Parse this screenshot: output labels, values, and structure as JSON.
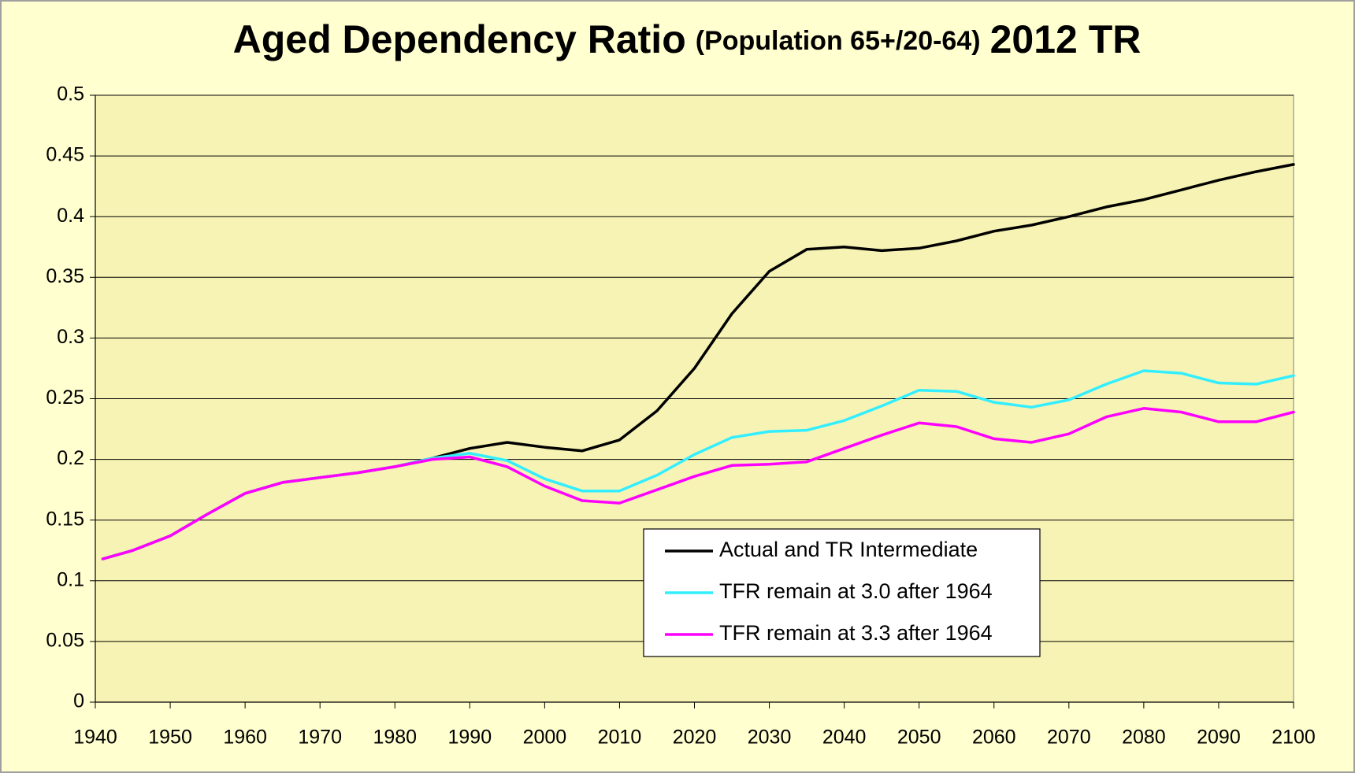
{
  "chart_data": {
    "type": "line",
    "title_parts": [
      "Aged Dependency Ratio",
      "(Population 65+/20-64)",
      "2012 TR"
    ],
    "x": [
      1941,
      1945,
      1950,
      1955,
      1960,
      1965,
      1970,
      1975,
      1980,
      1985,
      1990,
      1995,
      2000,
      2005,
      2010,
      2015,
      2020,
      2025,
      2030,
      2035,
      2040,
      2045,
      2050,
      2055,
      2060,
      2065,
      2070,
      2075,
      2080,
      2085,
      2090,
      2095,
      2100
    ],
    "series": [
      {
        "name": "Actual and TR Intermediate",
        "color": "#000000",
        "values": [
          0.118,
          0.125,
          0.137,
          0.155,
          0.172,
          0.181,
          0.185,
          0.189,
          0.194,
          0.201,
          0.209,
          0.214,
          0.21,
          0.207,
          0.216,
          0.24,
          0.275,
          0.32,
          0.355,
          0.373,
          0.375,
          0.372,
          0.374,
          0.38,
          0.388,
          0.393,
          0.4,
          0.408,
          0.414,
          0.422,
          0.43,
          0.437,
          0.443
        ]
      },
      {
        "name": "TFR remain at 3.0 after 1964",
        "color": "#33eeff",
        "values": [
          0.118,
          0.125,
          0.137,
          0.155,
          0.172,
          0.181,
          0.185,
          0.189,
          0.194,
          0.201,
          0.205,
          0.199,
          0.184,
          0.174,
          0.174,
          0.187,
          0.204,
          0.218,
          0.223,
          0.224,
          0.232,
          0.244,
          0.257,
          0.256,
          0.247,
          0.243,
          0.249,
          0.262,
          0.273,
          0.271,
          0.263,
          0.262,
          0.269
        ]
      },
      {
        "name": "TFR remain at 3.3 after 1964",
        "color": "#ff00ff",
        "values": [
          0.118,
          0.125,
          0.137,
          0.155,
          0.172,
          0.181,
          0.185,
          0.189,
          0.194,
          0.2,
          0.202,
          0.194,
          0.178,
          0.166,
          0.164,
          0.175,
          0.186,
          0.195,
          0.196,
          0.198,
          0.209,
          0.22,
          0.23,
          0.227,
          0.217,
          0.214,
          0.221,
          0.235,
          0.242,
          0.239,
          0.231,
          0.231,
          0.239
        ]
      }
    ],
    "xlim": [
      1940,
      2100
    ],
    "xticks": [
      1940,
      1950,
      1960,
      1970,
      1980,
      1990,
      2000,
      2010,
      2020,
      2030,
      2040,
      2050,
      2060,
      2070,
      2080,
      2090,
      2100
    ],
    "ylim": [
      0,
      0.5
    ],
    "yticks": [
      0,
      0.05,
      0.1,
      0.15,
      0.2,
      0.25,
      0.3,
      0.35,
      0.4,
      0.45,
      0.5
    ],
    "grid": true
  }
}
